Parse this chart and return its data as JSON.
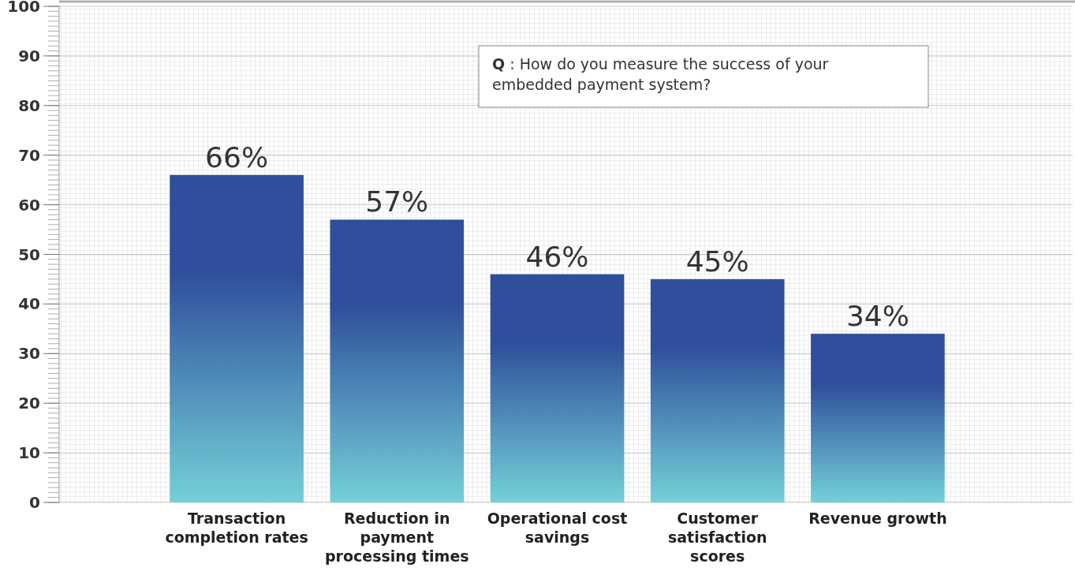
{
  "chart_data": {
    "type": "bar",
    "categories": [
      "Transaction completion rates",
      "Reduction in payment processing times",
      "Operational cost savings",
      "Customer satisfaction scores",
      "Revenue growth"
    ],
    "values": [
      66,
      57,
      46,
      45,
      34
    ],
    "value_labels": [
      "66%",
      "57%",
      "46%",
      "45%",
      "34%"
    ],
    "color": "#2f4f9c",
    "ylim": [
      0,
      100
    ],
    "yticks": [
      0,
      10,
      20,
      30,
      40,
      50,
      60,
      70,
      80,
      90,
      100
    ],
    "grid": true,
    "annotations": [
      "Q : How do you measure the success of your embedded payment system?"
    ]
  }
}
